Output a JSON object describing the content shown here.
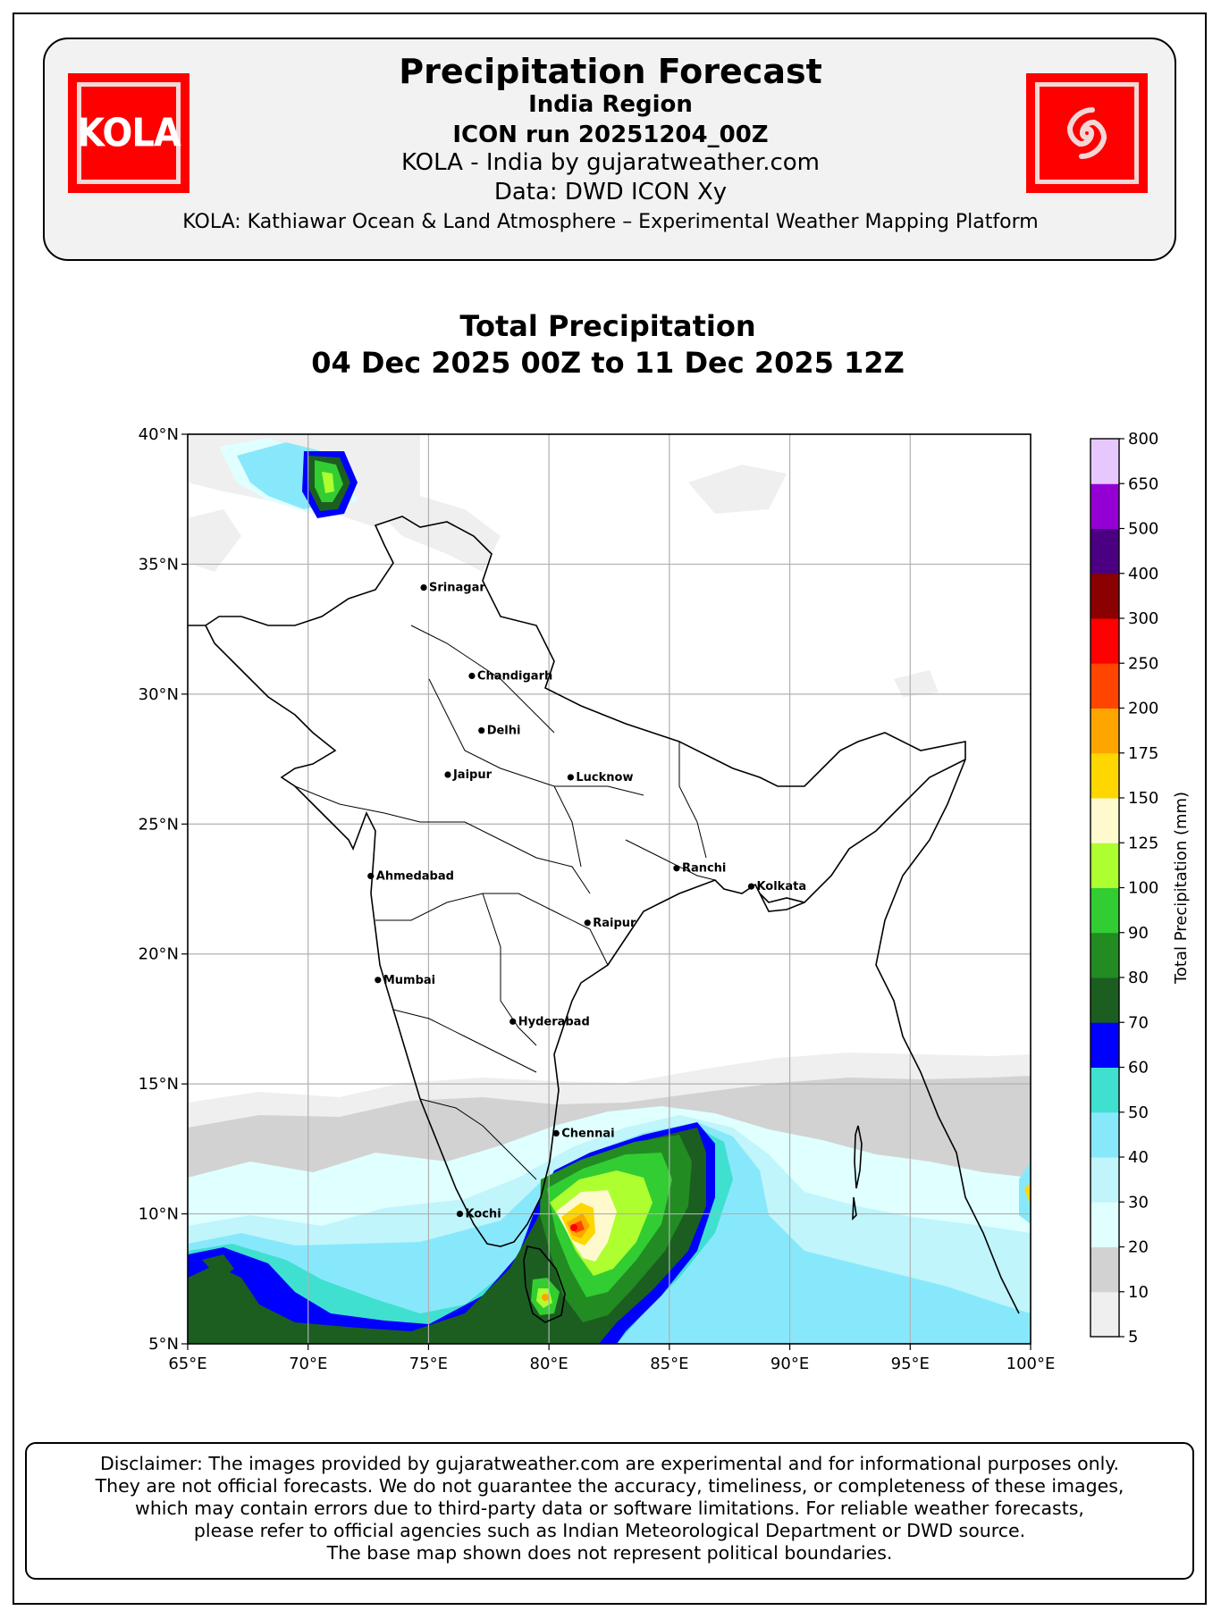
{
  "header": {
    "title": "Precipitation Forecast",
    "region": "India Region",
    "run": "ICON run 20251204_00Z",
    "site": "KOLA - India by gujaratweather.com",
    "data_source": "Data: DWD ICON Xy",
    "platform": "KOLA: Kathiawar Ocean & Land Atmosphere – Experimental Weather Mapping Platform",
    "logo_left_text": "KOLA",
    "logo_right_icon": "cyclone-spiral-icon",
    "logo_color": "#ff0000"
  },
  "map": {
    "title_line1": "Total Precipitation",
    "title_line2": "04 Dec 2025 00Z to 11 Dec 2025 12Z",
    "lon_range": [
      65,
      100
    ],
    "lat_range": [
      5,
      40
    ],
    "lon_ticks": [
      "65°E",
      "70°E",
      "75°E",
      "80°E",
      "85°E",
      "90°E",
      "95°E",
      "100°E"
    ],
    "lat_ticks": [
      "5°N",
      "10°N",
      "15°N",
      "20°N",
      "25°N",
      "30°N",
      "35°N",
      "40°N"
    ],
    "grid": true,
    "cities": [
      {
        "name": "Srinagar",
        "lon": 74.8,
        "lat": 34.1
      },
      {
        "name": "Chandigarh",
        "lon": 76.8,
        "lat": 30.7
      },
      {
        "name": "Delhi",
        "lon": 77.2,
        "lat": 28.6
      },
      {
        "name": "Jaipur",
        "lon": 75.8,
        "lat": 26.9
      },
      {
        "name": "Lucknow",
        "lon": 80.9,
        "lat": 26.8
      },
      {
        "name": "Ranchi",
        "lon": 85.3,
        "lat": 23.3
      },
      {
        "name": "Kolkata",
        "lon": 88.4,
        "lat": 22.6
      },
      {
        "name": "Ahmedabad",
        "lon": 72.6,
        "lat": 23.0
      },
      {
        "name": "Raipur",
        "lon": 81.6,
        "lat": 21.2
      },
      {
        "name": "Mumbai",
        "lon": 72.9,
        "lat": 19.0
      },
      {
        "name": "Hyderabad",
        "lon": 78.5,
        "lat": 17.4
      },
      {
        "name": "Chennai",
        "lon": 80.3,
        "lat": 13.1
      },
      {
        "name": "Kochi",
        "lon": 76.3,
        "lat": 10.0
      }
    ]
  },
  "colorbar": {
    "label": "Total Precipitation (mm)",
    "levels": [
      "5",
      "10",
      "20",
      "30",
      "40",
      "50",
      "60",
      "70",
      "80",
      "90",
      "100",
      "125",
      "150",
      "175",
      "200",
      "250",
      "300",
      "400",
      "500",
      "650",
      "800"
    ],
    "colors": [
      "#efefef",
      "#d2d2d2",
      "#e0ffff",
      "#bff5fb",
      "#88e8fb",
      "#40e0d0",
      "#0000ff",
      "#1b5e20",
      "#228b22",
      "#32cd32",
      "#adff2f",
      "#fffacd",
      "#ffd700",
      "#ffa500",
      "#ff4500",
      "#ff0000",
      "#8b0000",
      "#4b0082",
      "#9400d3",
      "#e6c8ff"
    ]
  },
  "disclaimer": [
    "Disclaimer: The images provided by gujaratweather.com are experimental and for informational purposes only.",
    "They are not official forecasts. We do not guarantee the accuracy, timeliness, or completeness of these images,",
    "which may contain errors due to third-party data or software limitations. For reliable weather forecasts,",
    "please refer to official agencies such as Indian Meteorological Department or DWD source.",
    "The base map shown does not represent political boundaries."
  ]
}
